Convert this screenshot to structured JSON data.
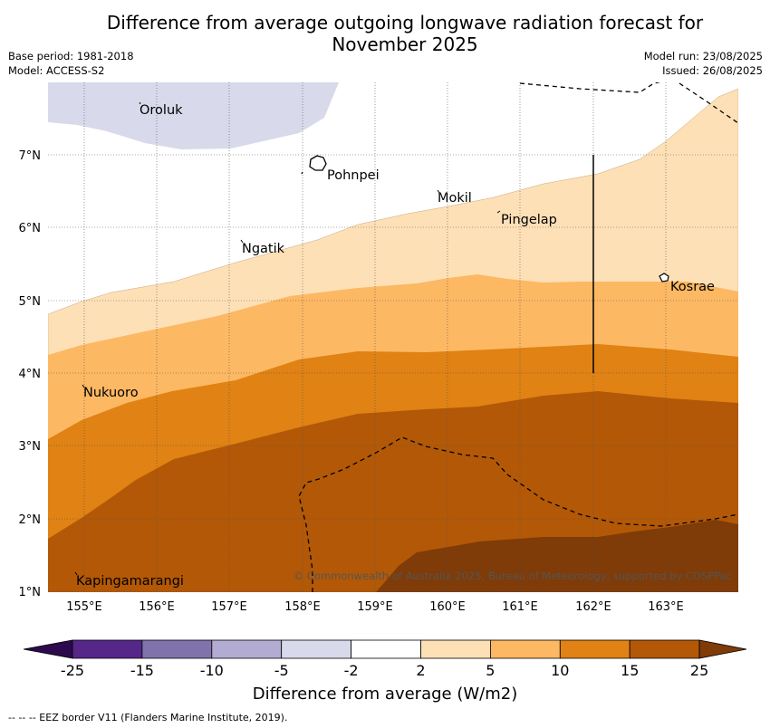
{
  "title_line1": "Difference from average outgoing longwave radiation forecast for",
  "title_line2": "November 2025",
  "base_period": "Base period: 1981-2018",
  "model": "Model: ACCESS-S2",
  "model_run": "Model run: 23/08/2025",
  "issued": "Issued: 26/08/2025",
  "map": {
    "x_ticks": [
      "155°E",
      "156°E",
      "157°E",
      "158°E",
      "159°E",
      "160°E",
      "161°E",
      "162°E",
      "163°E"
    ],
    "y_ticks": [
      "7°N",
      "6°N",
      "5°N",
      "4°N",
      "3°N",
      "2°N",
      "1°N"
    ],
    "places": [
      "Oroluk",
      "Pohnpei",
      "Mokil",
      "Pingelap",
      "Ngatik",
      "Kosrae",
      "Nukuoro",
      "Kapingamarangi"
    ],
    "copyright": "© Commonwealth of Australia 2025, Bureau of Meteorology, supported by COSPPac"
  },
  "colorbar": {
    "ticks": [
      "-25",
      "-15",
      "-10",
      "-5",
      "-2",
      "2",
      "5",
      "10",
      "15",
      "25"
    ],
    "colors": [
      "#2d0a4e",
      "#542788",
      "#8073ac",
      "#b2abd2",
      "#d8daeb",
      "#ffffff",
      "#fee0b6",
      "#fdb863",
      "#e08214",
      "#b35806",
      "#7f3b08"
    ],
    "label": "Difference from average (W/m2)"
  },
  "footer": "--  --  -- EEZ border V11 (Flanders Marine Institute, 2019)."
}
